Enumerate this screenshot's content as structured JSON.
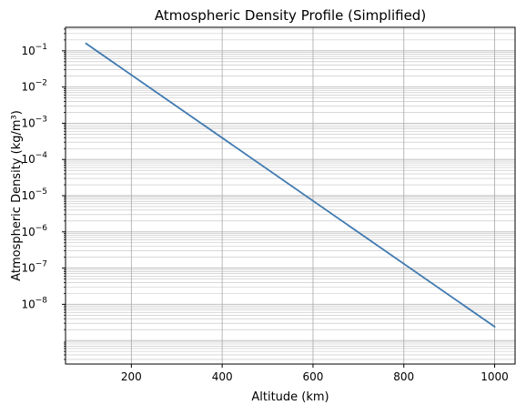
{
  "chart_data": {
    "type": "line",
    "title": "Atmospheric Density Profile (Simplified)",
    "xlabel": "Altitude (km)",
    "ylabel": "Atmospheric Density (kg/m³)",
    "xlim": [
      55,
      1045
    ],
    "ylim_log10": [
      -9.65,
      -0.35
    ],
    "yscale": "log",
    "grid": "on (major and minor)",
    "x_ticks": [
      200,
      400,
      600,
      800,
      1000
    ],
    "y_ticks": [
      {
        "exp": -8,
        "base": "10",
        "sup": "−8"
      },
      {
        "exp": -7,
        "base": "10",
        "sup": "−7"
      },
      {
        "exp": -6,
        "base": "10",
        "sup": "−6"
      },
      {
        "exp": -5,
        "base": "10",
        "sup": "−5"
      },
      {
        "exp": -4,
        "base": "10",
        "sup": "−4"
      },
      {
        "exp": -3,
        "base": "10",
        "sup": "−3"
      },
      {
        "exp": -2,
        "base": "10",
        "sup": "−2"
      },
      {
        "exp": -1,
        "base": "10",
        "sup": "−1"
      }
    ],
    "series": [
      {
        "color": "#3f79b0",
        "x": [
          100,
          1000
        ],
        "y": [
          0.16,
          2.4e-09
        ]
      }
    ]
  }
}
